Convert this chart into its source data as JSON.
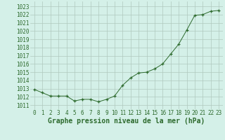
{
  "x": [
    0,
    1,
    2,
    3,
    4,
    5,
    6,
    7,
    8,
    9,
    10,
    11,
    12,
    13,
    14,
    15,
    16,
    17,
    18,
    19,
    20,
    21,
    22,
    23
  ],
  "y": [
    1012.9,
    1012.5,
    1012.1,
    1012.1,
    1012.1,
    1011.5,
    1011.7,
    1011.7,
    1011.4,
    1011.7,
    1012.1,
    1013.4,
    1014.3,
    1014.9,
    1015.0,
    1015.4,
    1016.0,
    1017.2,
    1018.4,
    1020.1,
    1021.9,
    1022.0,
    1022.4,
    1022.5
  ],
  "line_color": "#2d6a2d",
  "marker": "+",
  "bg_color": "#d4f0e8",
  "grid_color": "#b0c8be",
  "title": "Graphe pression niveau de la mer (hPa)",
  "ylabel_ticks": [
    1011,
    1012,
    1013,
    1014,
    1015,
    1016,
    1017,
    1018,
    1019,
    1020,
    1021,
    1022,
    1023
  ],
  "xlim": [
    -0.5,
    23.5
  ],
  "ylim": [
    1010.5,
    1023.6
  ],
  "title_fontsize": 7.0,
  "tick_fontsize": 5.5
}
